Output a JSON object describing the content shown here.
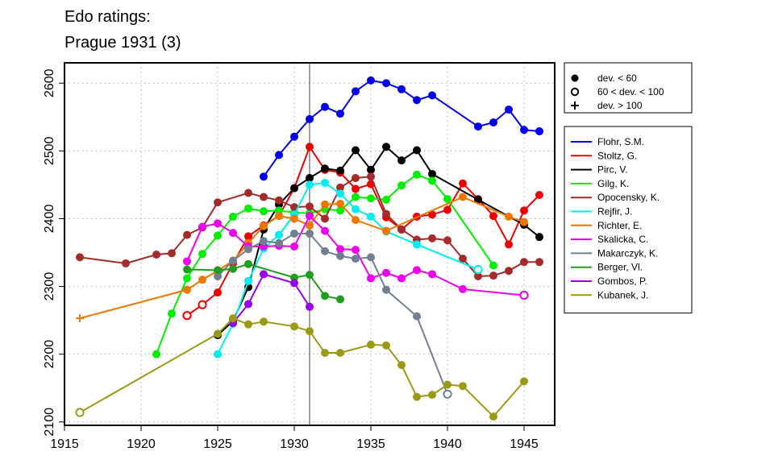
{
  "title_line1": "Edo ratings:",
  "title_line2": "Prague 1931 (3)",
  "chart_data": {
    "type": "line",
    "xlim": [
      1915,
      1947
    ],
    "ylim": [
      2095,
      2630
    ],
    "x_ticks": [
      1915,
      1920,
      1925,
      1930,
      1935,
      1940,
      1945
    ],
    "y_ticks": [
      2100,
      2200,
      2300,
      2400,
      2500,
      2600
    ],
    "grid": true,
    "reference_line_x": 1931,
    "dev_legend": [
      {
        "symbol": "filled-circle",
        "label": "dev. < 60"
      },
      {
        "symbol": "open-circle",
        "label": "60 < dev. < 100"
      },
      {
        "symbol": "plus",
        "label": "dev. > 100"
      }
    ],
    "series": [
      {
        "name": "Flohr, S.M.",
        "color": "#0000ee",
        "points": [
          [
            1928,
            2462,
            "f"
          ],
          [
            1929,
            2494,
            "f"
          ],
          [
            1930,
            2521,
            "f"
          ],
          [
            1931,
            2547,
            "f"
          ],
          [
            1932,
            2565,
            "f"
          ],
          [
            1933,
            2555,
            "f"
          ],
          [
            1934,
            2588,
            "f"
          ],
          [
            1935,
            2604,
            "f"
          ],
          [
            1936,
            2600,
            "f"
          ],
          [
            1937,
            2591,
            "f"
          ],
          [
            1938,
            2575,
            "f"
          ],
          [
            1939,
            2582,
            "f"
          ],
          [
            1942,
            2536,
            "f"
          ],
          [
            1943,
            2542,
            "f"
          ],
          [
            1944,
            2561,
            "f"
          ],
          [
            1945,
            2531,
            "f"
          ],
          [
            1946,
            2529,
            "f"
          ]
        ]
      },
      {
        "name": "Stoltz, G.",
        "color": "#ee0000",
        "points": [
          [
            1923,
            2257,
            "o"
          ],
          [
            1924,
            2273,
            "o"
          ],
          [
            1925,
            2291,
            "f"
          ],
          [
            1926,
            2334,
            "f"
          ],
          [
            1927,
            2374,
            "f"
          ],
          [
            1928,
            2390,
            "f"
          ],
          [
            1929,
            2404,
            "f"
          ],
          [
            1930,
            2445,
            "f"
          ],
          [
            1931,
            2506,
            "f"
          ],
          [
            1932,
            2472,
            "f"
          ],
          [
            1933,
            2468,
            "f"
          ],
          [
            1934,
            2444,
            "f"
          ],
          [
            1935,
            2451,
            "f"
          ],
          [
            1936,
            2402,
            "f"
          ],
          [
            1937,
            2384,
            "f"
          ],
          [
            1938,
            2403,
            "f"
          ],
          [
            1939,
            2406,
            "f"
          ],
          [
            1940,
            2413,
            "f"
          ],
          [
            1941,
            2452,
            "f"
          ],
          [
            1942,
            2429,
            "f"
          ],
          [
            1943,
            2404,
            "f"
          ],
          [
            1944,
            2362,
            "f"
          ],
          [
            1945,
            2412,
            "f"
          ],
          [
            1946,
            2435,
            "f"
          ]
        ]
      },
      {
        "name": "Pirc, V.",
        "color": "#000000",
        "points": [
          [
            1925,
            2228,
            "f"
          ],
          [
            1926,
            2249,
            "f"
          ],
          [
            1927,
            2299,
            "f"
          ],
          [
            1928,
            2384,
            "f"
          ],
          [
            1929,
            2421,
            "f"
          ],
          [
            1930,
            2445,
            "f"
          ],
          [
            1931,
            2460,
            "f"
          ],
          [
            1932,
            2474,
            "f"
          ],
          [
            1933,
            2471,
            "f"
          ],
          [
            1934,
            2501,
            "f"
          ],
          [
            1935,
            2472,
            "f"
          ],
          [
            1936,
            2506,
            "f"
          ],
          [
            1937,
            2486,
            "f"
          ],
          [
            1938,
            2501,
            "f"
          ],
          [
            1939,
            2466,
            "f"
          ],
          [
            1942,
            2428,
            "f"
          ],
          [
            1945,
            2391,
            "f"
          ],
          [
            1946,
            2373,
            "f"
          ]
        ]
      },
      {
        "name": "Gilg, K.",
        "color": "#00ee00",
        "points": [
          [
            1921,
            2200,
            "f"
          ],
          [
            1922,
            2260,
            "f"
          ],
          [
            1923,
            2312,
            "f"
          ],
          [
            1924,
            2348,
            "f"
          ],
          [
            1925,
            2375,
            "f"
          ],
          [
            1926,
            2403,
            "f"
          ],
          [
            1927,
            2415,
            "f"
          ],
          [
            1928,
            2411,
            "f"
          ],
          [
            1929,
            2412,
            "f"
          ],
          [
            1930,
            2409,
            "f"
          ],
          [
            1931,
            2408,
            "f"
          ],
          [
            1932,
            2414,
            "f"
          ],
          [
            1933,
            2412,
            "f"
          ],
          [
            1934,
            2432,
            "f"
          ],
          [
            1935,
            2430,
            "f"
          ],
          [
            1936,
            2428,
            "f"
          ],
          [
            1937,
            2449,
            "f"
          ],
          [
            1938,
            2465,
            "f"
          ],
          [
            1939,
            2456,
            "f"
          ],
          [
            1940,
            2429,
            "f"
          ],
          [
            1943,
            2331,
            "f"
          ]
        ]
      },
      {
        "name": "Opocensky, K.",
        "color": "#a52a2a",
        "points": [
          [
            1916,
            2343,
            "f"
          ],
          [
            1919,
            2334,
            "f"
          ],
          [
            1921,
            2347,
            "f"
          ],
          [
            1922,
            2349,
            "f"
          ],
          [
            1923,
            2376,
            "f"
          ],
          [
            1924,
            2387,
            "f"
          ],
          [
            1925,
            2424,
            "f"
          ],
          [
            1927,
            2438,
            "f"
          ],
          [
            1928,
            2432,
            "f"
          ],
          [
            1929,
            2427,
            "f"
          ],
          [
            1930,
            2417,
            "f"
          ],
          [
            1931,
            2418,
            "f"
          ],
          [
            1932,
            2400,
            "f"
          ],
          [
            1933,
            2446,
            "f"
          ],
          [
            1934,
            2460,
            "f"
          ],
          [
            1935,
            2462,
            "f"
          ],
          [
            1936,
            2407,
            "f"
          ],
          [
            1937,
            2384,
            "f"
          ],
          [
            1938,
            2369,
            "f"
          ],
          [
            1939,
            2371,
            "f"
          ],
          [
            1940,
            2368,
            "f"
          ],
          [
            1941,
            2341,
            "f"
          ],
          [
            1942,
            2315,
            "f"
          ],
          [
            1943,
            2316,
            "f"
          ],
          [
            1944,
            2323,
            "f"
          ],
          [
            1945,
            2336,
            "f"
          ],
          [
            1946,
            2336,
            "f"
          ]
        ]
      },
      {
        "name": "Rejfir, J.",
        "color": "#00eeee",
        "points": [
          [
            1925,
            2200,
            "f"
          ],
          [
            1926,
            2245,
            "f"
          ],
          [
            1927,
            2308,
            "f"
          ],
          [
            1928,
            2356,
            "f"
          ],
          [
            1929,
            2376,
            "f"
          ],
          [
            1930,
            2406,
            "f"
          ],
          [
            1931,
            2450,
            "f"
          ],
          [
            1932,
            2453,
            "f"
          ],
          [
            1933,
            2437,
            "f"
          ],
          [
            1934,
            2414,
            "f"
          ],
          [
            1935,
            2403,
            "f"
          ],
          [
            1936,
            2381,
            "f"
          ],
          [
            1938,
            2362,
            "f"
          ],
          [
            1942,
            2325,
            "o"
          ]
        ]
      },
      {
        "name": "Richter, E.",
        "color": "#ee7700",
        "points": [
          [
            1916,
            2253,
            "n"
          ],
          [
            1923,
            2295,
            "f"
          ],
          [
            1924,
            2310,
            "f"
          ],
          [
            1925,
            2323,
            "f"
          ],
          [
            1926,
            2338,
            "f"
          ],
          [
            1927,
            2364,
            "f"
          ],
          [
            1928,
            2389,
            "f"
          ],
          [
            1929,
            2404,
            "f"
          ],
          [
            1930,
            2400,
            "f"
          ],
          [
            1931,
            2390,
            "f"
          ],
          [
            1932,
            2421,
            "f"
          ],
          [
            1933,
            2422,
            "f"
          ],
          [
            1934,
            2398,
            "f"
          ],
          [
            1936,
            2382,
            "f"
          ],
          [
            1941,
            2432,
            "f"
          ],
          [
            1944,
            2403,
            "f"
          ],
          [
            1945,
            2395,
            "f"
          ]
        ]
      },
      {
        "name": "Skalicka, C.",
        "color": "#ee00ee",
        "points": [
          [
            1923,
            2337,
            "f"
          ],
          [
            1924,
            2388,
            "f"
          ],
          [
            1925,
            2393,
            "f"
          ],
          [
            1926,
            2379,
            "f"
          ],
          [
            1927,
            2359,
            "f"
          ],
          [
            1928,
            2359,
            "f"
          ],
          [
            1929,
            2360,
            "f"
          ],
          [
            1930,
            2359,
            "f"
          ],
          [
            1931,
            2404,
            "f"
          ],
          [
            1932,
            2382,
            "f"
          ],
          [
            1933,
            2355,
            "f"
          ],
          [
            1934,
            2354,
            "f"
          ],
          [
            1935,
            2312,
            "f"
          ],
          [
            1936,
            2320,
            "f"
          ],
          [
            1937,
            2312,
            "f"
          ],
          [
            1938,
            2324,
            "f"
          ],
          [
            1939,
            2318,
            "f"
          ],
          [
            1941,
            2296,
            "f"
          ],
          [
            1945,
            2287,
            "o"
          ]
        ]
      },
      {
        "name": "Makarczyk, K.",
        "color": "#708090",
        "points": [
          [
            1925,
            2315,
            "f"
          ],
          [
            1926,
            2338,
            "f"
          ],
          [
            1927,
            2355,
            "f"
          ],
          [
            1928,
            2367,
            "f"
          ],
          [
            1929,
            2364,
            "f"
          ],
          [
            1930,
            2378,
            "f"
          ],
          [
            1931,
            2378,
            "f"
          ],
          [
            1932,
            2352,
            "f"
          ],
          [
            1933,
            2345,
            "f"
          ],
          [
            1934,
            2341,
            "f"
          ],
          [
            1935,
            2343,
            "f"
          ],
          [
            1936,
            2295,
            "f"
          ],
          [
            1938,
            2256,
            "f"
          ],
          [
            1940,
            2141,
            "o"
          ]
        ]
      },
      {
        "name": "Berger, Vl.",
        "color": "#1e9e1e",
        "points": [
          [
            1923,
            2325,
            "f"
          ],
          [
            1925,
            2324,
            "f"
          ],
          [
            1926,
            2326,
            "f"
          ],
          [
            1927,
            2333,
            "f"
          ],
          [
            1930,
            2313,
            "f"
          ],
          [
            1931,
            2317,
            "f"
          ],
          [
            1932,
            2286,
            "f"
          ],
          [
            1933,
            2281,
            "f"
          ]
        ]
      },
      {
        "name": "Gombos, P.",
        "color": "#9900ee",
        "points": [
          [
            1926,
            2246,
            "f"
          ],
          [
            1927,
            2274,
            "f"
          ],
          [
            1928,
            2318,
            "f"
          ],
          [
            1930,
            2305,
            "f"
          ],
          [
            1931,
            2270,
            "f"
          ]
        ]
      },
      {
        "name": "Kubanek, J.",
        "color": "#9c9a14",
        "points": [
          [
            1916,
            2114,
            "o"
          ],
          [
            1925,
            2230,
            "f"
          ],
          [
            1926,
            2253,
            "f"
          ],
          [
            1927,
            2244,
            "f"
          ],
          [
            1928,
            2248,
            "f"
          ],
          [
            1930,
            2241,
            "f"
          ],
          [
            1931,
            2234,
            "f"
          ],
          [
            1932,
            2202,
            "f"
          ],
          [
            1933,
            2202,
            "f"
          ],
          [
            1935,
            2214,
            "f"
          ],
          [
            1936,
            2213,
            "f"
          ],
          [
            1937,
            2184,
            "f"
          ],
          [
            1938,
            2137,
            "f"
          ],
          [
            1939,
            2140,
            "f"
          ],
          [
            1940,
            2155,
            "f"
          ],
          [
            1941,
            2153,
            "f"
          ],
          [
            1943,
            2108,
            "f"
          ],
          [
            1945,
            2160,
            "f"
          ]
        ]
      }
    ]
  }
}
